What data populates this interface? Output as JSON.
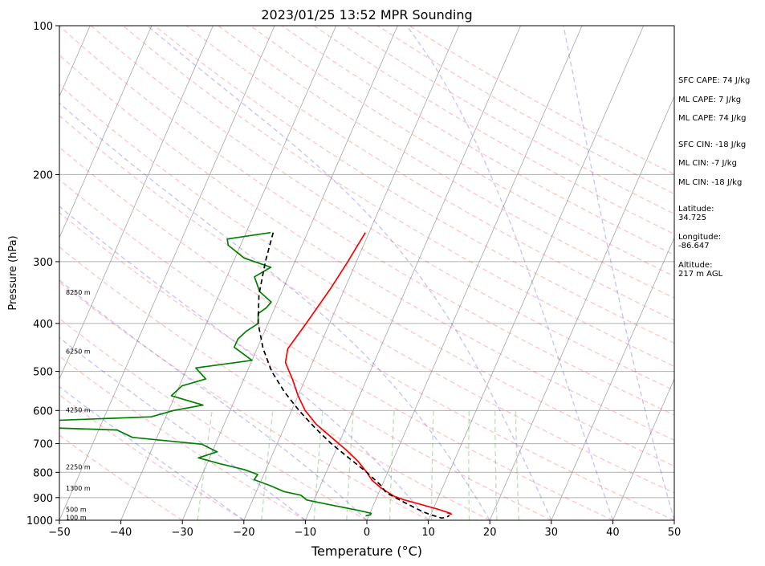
{
  "chart_data": {
    "type": "line",
    "title": "2023/01/25 13:52 MPR Sounding",
    "xlabel": "Temperature (°C)",
    "ylabel": "Pressure (hPa)",
    "xlim": [
      -50,
      50
    ],
    "ylim": [
      1000,
      100
    ],
    "y_scale": "log",
    "grid": true,
    "x_ticks": [
      "−50",
      "−40",
      "−30",
      "−20",
      "−10",
      "0",
      "10",
      "20",
      "30",
      "40",
      "50"
    ],
    "y_ticks": [
      "100",
      "200",
      "300",
      "400",
      "500",
      "600",
      "700",
      "800",
      "900",
      "1000"
    ],
    "height_labels": [
      {
        "p": 347,
        "label": "8250 m"
      },
      {
        "p": 457,
        "label": "6250 m"
      },
      {
        "p": 600,
        "label": "4250 m"
      },
      {
        "p": 783,
        "label": "2250 m"
      },
      {
        "p": 865,
        "label": "1300 m"
      },
      {
        "p": 955,
        "label": "500 m"
      },
      {
        "p": 990,
        "label": "100 m"
      }
    ],
    "series": [
      {
        "id": "temperature",
        "color": "#ff0000",
        "style": "solid",
        "points": [
          [
            262,
            -20.6
          ],
          [
            280,
            -21.0
          ],
          [
            300,
            -21.4
          ],
          [
            340,
            -22.3
          ],
          [
            400,
            -23.8
          ],
          [
            450,
            -25.0
          ],
          [
            480,
            -24.4
          ],
          [
            520,
            -22.0
          ],
          [
            560,
            -20.0
          ],
          [
            600,
            -17.8
          ],
          [
            640,
            -15.0
          ],
          [
            680,
            -11.6
          ],
          [
            720,
            -8.4
          ],
          [
            760,
            -5.6
          ],
          [
            800,
            -3.4
          ],
          [
            830,
            -2.0
          ],
          [
            860,
            0.0
          ],
          [
            880,
            1.6
          ],
          [
            895,
            2.8
          ],
          [
            910,
            4.7
          ],
          [
            930,
            7.8
          ],
          [
            950,
            10.8
          ],
          [
            968,
            13.1
          ],
          [
            972,
            13.3
          ],
          [
            966,
            12.5
          ]
        ]
      },
      {
        "id": "dewpoint",
        "color": "#008000",
        "style": "solid",
        "points": [
          [
            262,
            -36.0
          ],
          [
            270,
            -42.6
          ],
          [
            278,
            -42.0
          ],
          [
            295,
            -38.5
          ],
          [
            308,
            -33.5
          ],
          [
            322,
            -35.5
          ],
          [
            345,
            -33.6
          ],
          [
            362,
            -31.0
          ],
          [
            372,
            -31.4
          ],
          [
            382,
            -32.3
          ],
          [
            400,
            -31.6
          ],
          [
            415,
            -33.0
          ],
          [
            430,
            -33.8
          ],
          [
            447,
            -33.8
          ],
          [
            475,
            -30.0
          ],
          [
            492,
            -38.6
          ],
          [
            518,
            -36.2
          ],
          [
            535,
            -39.6
          ],
          [
            560,
            -40.6
          ],
          [
            585,
            -34.8
          ],
          [
            600,
            -39.2
          ],
          [
            618,
            -42.4
          ],
          [
            640,
            -75.0
          ],
          [
            657,
            -47.0
          ],
          [
            680,
            -44.0
          ],
          [
            702,
            -32.2
          ],
          [
            727,
            -29.2
          ],
          [
            748,
            -31.8
          ],
          [
            768,
            -28.0
          ],
          [
            790,
            -23.5
          ],
          [
            808,
            -21.0
          ],
          [
            828,
            -21.2
          ],
          [
            850,
            -18.3
          ],
          [
            875,
            -15.5
          ],
          [
            890,
            -12.5
          ],
          [
            910,
            -11.2
          ],
          [
            930,
            -7.2
          ],
          [
            955,
            -2.1
          ],
          [
            968,
            0.2
          ],
          [
            975,
            0.2
          ],
          [
            980,
            -0.5
          ]
        ]
      },
      {
        "id": "parcel",
        "color": "#000000",
        "style": "dashed",
        "points": [
          [
            262,
            -35.6
          ],
          [
            300,
            -34.8
          ],
          [
            350,
            -33.5
          ],
          [
            400,
            -31.6
          ],
          [
            450,
            -29.0
          ],
          [
            500,
            -26.0
          ],
          [
            550,
            -22.5
          ],
          [
            600,
            -18.8
          ],
          [
            650,
            -15.0
          ],
          [
            700,
            -11.2
          ],
          [
            750,
            -7.2
          ],
          [
            800,
            -3.4
          ],
          [
            850,
            -0.2
          ],
          [
            880,
            1.2
          ],
          [
            920,
            4.8
          ],
          [
            960,
            8.4
          ],
          [
            975,
            10.0
          ],
          [
            990,
            12.0
          ],
          [
            985,
            12.8
          ],
          [
            978,
            13.1
          ]
        ]
      }
    ]
  },
  "side_info": {
    "sfc_cape": "SFC CAPE: 74 J/kg",
    "ml_cape_1": "ML CAPE: 7 J/kg",
    "ml_cape_2": "ML CAPE: 74 J/kg",
    "sfc_cin": "SFC CIN: -18 J/kg",
    "ml_cin_1": "ML CIN: -7 J/kg",
    "ml_cin_2": "ML CIN: -18 J/kg",
    "latitude": "Latitude:\n34.725",
    "longitude": "Longitude:\n-86.647",
    "altitude": "Altitude:\n217 m AGL"
  }
}
